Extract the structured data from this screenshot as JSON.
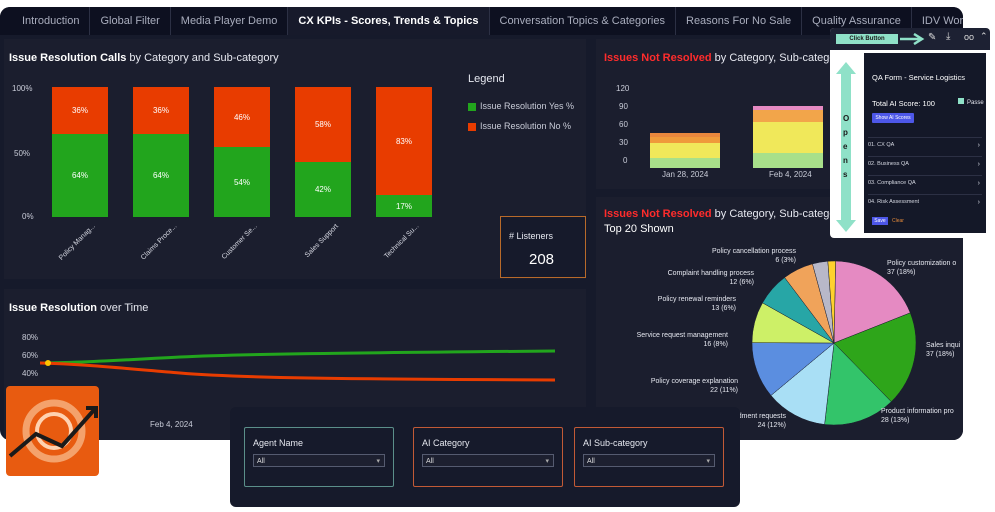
{
  "tabs": [
    "Introduction",
    "Global Filter",
    "Media Player Demo",
    "CX KPIs - Scores, Trends & Topics",
    "Conversation Topics & Categories",
    "Reasons For No Sale",
    "Quality Assurance",
    "IDV Worksheet"
  ],
  "active_tab": 3,
  "resolution_panel": {
    "title_bold": "Issue Resolution Calls",
    "title_rest": " by Category and Sub-category",
    "yticks": [
      "100%",
      "50%",
      "0%"
    ],
    "legend_title": "Legend",
    "legend": [
      {
        "label": "Issue Resolution Yes %",
        "color": "#22a51d"
      },
      {
        "label": "Issue Resolution No %",
        "color": "#e83c00"
      }
    ],
    "bars": [
      {
        "category": "Policy Manag...",
        "yes": 64,
        "no": 36,
        "yes_label": "64%",
        "no_label": "36%"
      },
      {
        "category": "Claims Proce...",
        "yes": 64,
        "no": 36,
        "yes_label": "64%",
        "no_label": "36%"
      },
      {
        "category": "Customer Se...",
        "yes": 54,
        "no": 46,
        "yes_label": "54%",
        "no_label": "46%"
      },
      {
        "category": "Sales Support",
        "yes": 42,
        "no": 58,
        "yes_label": "42%",
        "no_label": "58%"
      },
      {
        "category": "Technical Su...",
        "yes": 17,
        "no": 83,
        "yes_label": "17%",
        "no_label": "83%"
      }
    ]
  },
  "listeners": {
    "label": "# Listeners",
    "value": "208"
  },
  "not_resolved_top": {
    "title_red": "Issues Not Resolved",
    "title_rest": " by Category, Sub-category",
    "yticks": [
      "120",
      "90",
      "60",
      "30",
      "0"
    ],
    "dates": [
      "Jan 28, 2024",
      "Feb 4, 2024"
    ]
  },
  "over_time": {
    "title_bold": "Issue Resolution",
    "title_rest": " over Time",
    "yticks": [
      "80%",
      "60%",
      "40%"
    ],
    "date": "Feb 4, 2024"
  },
  "pie_panel": {
    "title_red": "Issues Not Resolved",
    "title_rest": " by Category, Sub-category",
    "subtitle": "Top 20 Shown",
    "labels": [
      {
        "name": "Policy cancellation process",
        "value": "6 (3%)"
      },
      {
        "name": "Complaint handling process",
        "value": "12 (6%)"
      },
      {
        "name": "Policy renewal reminders",
        "value": "13 (6%)"
      },
      {
        "name": "Service request management",
        "value": "16 (8%)"
      },
      {
        "name": "Policy coverage explanation",
        "value": "22 (11%)"
      },
      {
        "name": "Policy amendment requests",
        "value": "24 (12%)"
      },
      {
        "name": "Policy customization o",
        "value": "37 (18%)"
      },
      {
        "name": "Sales inqui",
        "value": "37 (18%)"
      },
      {
        "name": "Product information pro",
        "value": "28 (13%)"
      }
    ],
    "slices": [
      {
        "value": 37,
        "color": "#e58ac2"
      },
      {
        "value": 37,
        "color": "#2ea51a"
      },
      {
        "value": 28,
        "color": "#33c46a"
      },
      {
        "value": 24,
        "color": "#a9dff5"
      },
      {
        "value": 22,
        "color": "#5b8ee0"
      },
      {
        "value": 16,
        "color": "#cdf067"
      },
      {
        "value": 13,
        "color": "#27a6a6"
      },
      {
        "value": 12,
        "color": "#f0a35a"
      },
      {
        "value": 6,
        "color": "#b8b8c8"
      },
      {
        "value": 3,
        "color": "#ffd12e"
      }
    ]
  },
  "filters": [
    {
      "title": "Agent Name",
      "value": "All",
      "border": "#5b8f8a"
    },
    {
      "title": "AI Category",
      "value": "All",
      "border": "#c25a36"
    },
    {
      "title": "AI Sub-category",
      "value": "All",
      "border": "#c25a36"
    }
  ],
  "qa_form": {
    "click_button": "Click Button",
    "opens": "O p e n s",
    "title": "QA Form - Service Logistics",
    "score": "Total AI Score: 100",
    "pass": "Passe",
    "show_scores": "Show AI Scores",
    "sections": [
      "01. CX QA",
      "02. Business QA",
      "03. Compliance QA",
      "04. Risk Assessment"
    ],
    "save": "Save",
    "clear": "Clear"
  }
}
